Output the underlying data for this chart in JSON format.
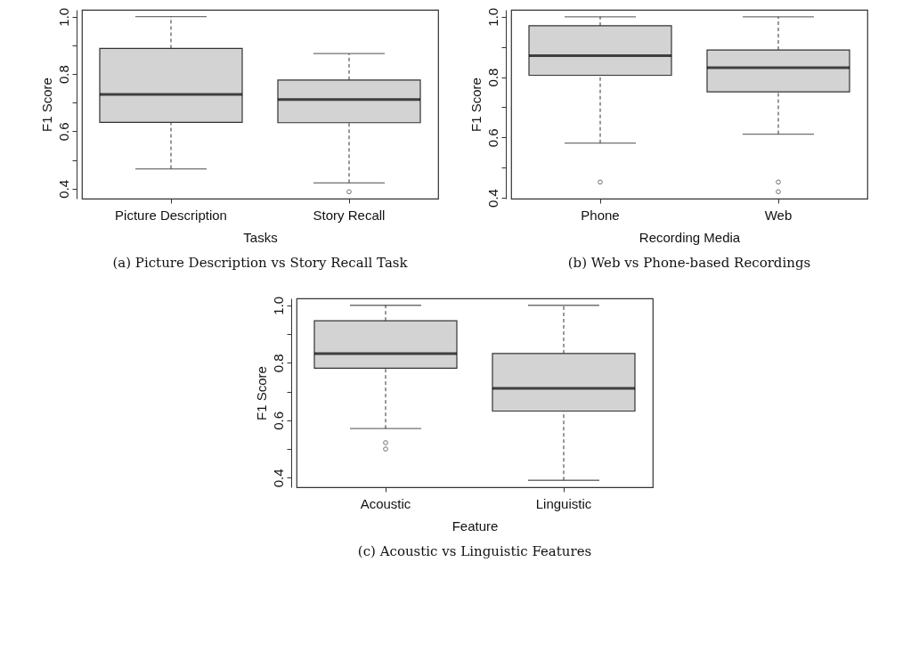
{
  "chart_data": [
    {
      "type": "box",
      "title": "(a) Picture Description vs Story Recall Task",
      "xlabel": "Tasks",
      "ylabel": "F1 Score",
      "categories": [
        "Picture Description",
        "Story Recall"
      ],
      "color": "#d3d3d3",
      "boxes": [
        {
          "low": 0.469,
          "q1": 0.631,
          "median": 0.729,
          "q3": 0.889,
          "high": 1.0
        },
        {
          "low": 0.42,
          "q1": 0.63,
          "median": 0.711,
          "q3": 0.779,
          "high": 0.871,
          "outliers": [
            0.389
          ]
        }
      ],
      "ylim": [
        0.365,
        1.024
      ],
      "yticks": [
        0.4,
        {
          "value": 0.5,
          "label": null
        },
        0.6,
        {
          "value": 0.7,
          "label": null
        },
        0.8,
        {
          "value": 0.9,
          "label": null
        },
        {
          "value": 1,
          "label": "1.0"
        }
      ],
      "grid": false
    },
    {
      "type": "box",
      "title": "(b) Web vs Phone-based Recordings",
      "xlabel": "Recording Media",
      "ylabel": "F1 Score",
      "categories": [
        "Phone",
        "Web"
      ],
      "color": "#d3d3d3",
      "boxes": [
        {
          "low": 0.581,
          "q1": 0.806,
          "median": 0.871,
          "q3": 0.97,
          "high": 1.0,
          "outliers": [
            0.452
          ]
        },
        {
          "low": 0.611,
          "q1": 0.751,
          "median": 0.831,
          "q3": 0.89,
          "high": 1.0,
          "outliers": [
            0.452,
            0.42
          ]
        }
      ],
      "ylim": [
        0.397,
        1.023
      ],
      "yticks": [
        0.4,
        {
          "value": 0.5,
          "label": null
        },
        0.6,
        {
          "value": 0.7,
          "label": null
        },
        0.8,
        {
          "value": 0.9,
          "label": null
        },
        {
          "value": 1,
          "label": "1.0"
        }
      ],
      "grid": false
    },
    {
      "type": "box",
      "title": "(c) Acoustic vs Linguistic Features",
      "xlabel": "Feature",
      "ylabel": "F1 Score",
      "categories": [
        "Acoustic",
        "Linguistic"
      ],
      "color": "#d3d3d3",
      "boxes": [
        {
          "low": 0.571,
          "q1": 0.781,
          "median": 0.832,
          "q3": 0.946,
          "high": 1.0,
          "outliers": [
            0.522,
            0.5
          ]
        },
        {
          "low": 0.391,
          "q1": 0.632,
          "median": 0.711,
          "q3": 0.832,
          "high": 1.0
        }
      ],
      "ylim": [
        0.367,
        1.024
      ],
      "yticks": [
        0.4,
        {
          "value": 0.5,
          "label": null
        },
        0.6,
        {
          "value": 0.7,
          "label": null
        },
        0.8,
        {
          "value": 0.9,
          "label": null
        },
        {
          "value": 1,
          "label": "1.0"
        }
      ],
      "grid": false
    }
  ]
}
